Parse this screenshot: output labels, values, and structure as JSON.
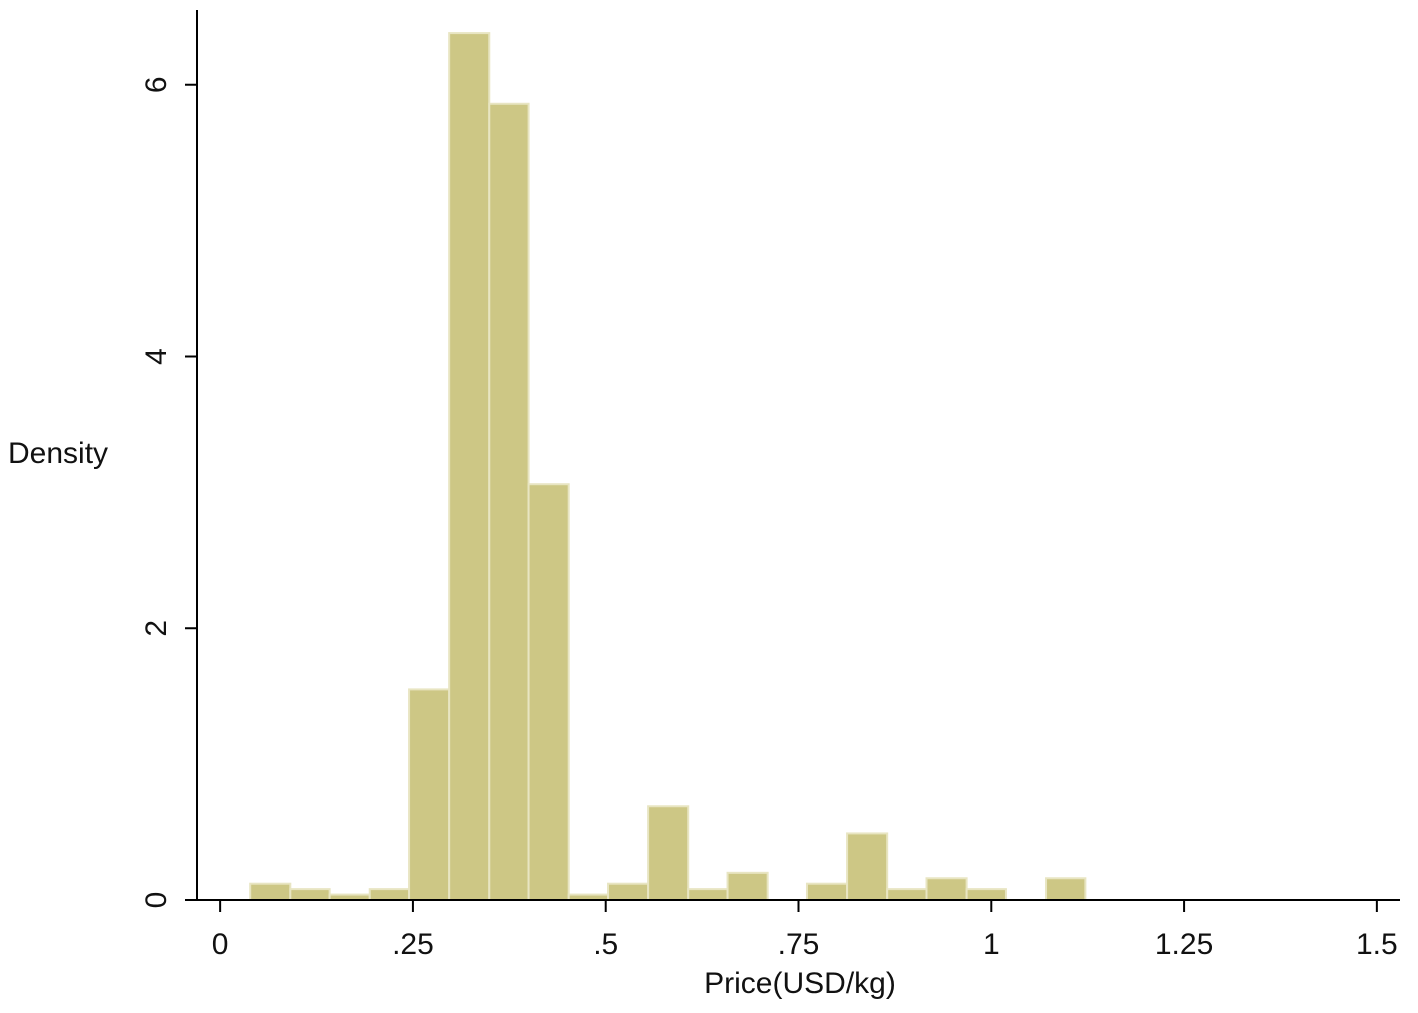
{
  "chart_data": {
    "type": "histogram",
    "x_label": "Price(USD/kg)",
    "y_label": "Density",
    "bins": [
      0.039,
      0.091,
      0.142,
      0.194,
      0.245,
      0.297,
      0.349,
      0.4,
      0.452,
      0.503,
      0.555,
      0.607,
      0.658,
      0.71,
      0.761,
      0.813,
      0.865,
      0.916,
      0.968,
      1.019,
      1.071,
      1.122
    ],
    "values": [
      0.12,
      0.08,
      0.04,
      0.08,
      1.55,
      6.38,
      5.86,
      3.06,
      0.04,
      0.12,
      0.69,
      0.08,
      0.2,
      0,
      0.12,
      0.49,
      0.08,
      0.16,
      0.08,
      0,
      0.16
    ],
    "color": "#cdc785",
    "edge_color": "#e8e5c2",
    "xlim": [
      -0.03,
      1.53
    ],
    "xticks": [
      0,
      {
        "value": 0.25,
        "label": ".25"
      },
      {
        "value": 0.5,
        "label": ".5"
      },
      {
        "value": 0.75,
        "label": ".75"
      },
      1,
      1.25,
      1.5
    ],
    "ylim": [
      0,
      6.55
    ],
    "yticks": [
      0,
      2,
      4,
      6
    ],
    "grid": false
  }
}
